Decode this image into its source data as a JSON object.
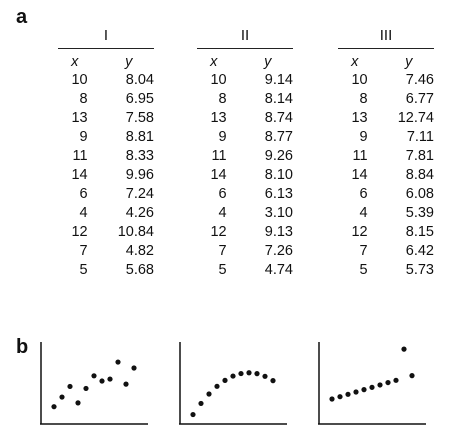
{
  "figure": {
    "panel_a_label": "a",
    "panel_b_label": "b",
    "x_header": "x",
    "y_header": "y"
  },
  "datasets": [
    {
      "title": "I",
      "rows": [
        {
          "x": "10",
          "y": "8.04"
        },
        {
          "x": "8",
          "y": "6.95"
        },
        {
          "x": "13",
          "y": "7.58"
        },
        {
          "x": "9",
          "y": "8.81"
        },
        {
          "x": "11",
          "y": "8.33"
        },
        {
          "x": "14",
          "y": "9.96"
        },
        {
          "x": "6",
          "y": "7.24"
        },
        {
          "x": "4",
          "y": "4.26"
        },
        {
          "x": "12",
          "y": "10.84"
        },
        {
          "x": "7",
          "y": "4.82"
        },
        {
          "x": "5",
          "y": "5.68"
        }
      ]
    },
    {
      "title": "II",
      "rows": [
        {
          "x": "10",
          "y": "9.14"
        },
        {
          "x": "8",
          "y": "8.14"
        },
        {
          "x": "13",
          "y": "8.74"
        },
        {
          "x": "9",
          "y": "8.77"
        },
        {
          "x": "11",
          "y": "9.26"
        },
        {
          "x": "14",
          "y": "8.10"
        },
        {
          "x": "6",
          "y": "6.13"
        },
        {
          "x": "4",
          "y": "3.10"
        },
        {
          "x": "12",
          "y": "9.13"
        },
        {
          "x": "7",
          "y": "7.26"
        },
        {
          "x": "5",
          "y": "4.74"
        }
      ]
    },
    {
      "title": "III",
      "rows": [
        {
          "x": "10",
          "y": "7.46"
        },
        {
          "x": "8",
          "y": "6.77"
        },
        {
          "x": "13",
          "y": "12.74"
        },
        {
          "x": "9",
          "y": "7.11"
        },
        {
          "x": "11",
          "y": "7.81"
        },
        {
          "x": "14",
          "y": "8.84"
        },
        {
          "x": "6",
          "y": "6.08"
        },
        {
          "x": "4",
          "y": "5.39"
        },
        {
          "x": "12",
          "y": "8.15"
        },
        {
          "x": "7",
          "y": "6.42"
        },
        {
          "x": "5",
          "y": "5.73"
        }
      ]
    }
  ],
  "chart_data": [
    {
      "type": "scatter",
      "x": [
        10,
        8,
        13,
        9,
        11,
        14,
        6,
        4,
        12,
        7,
        5
      ],
      "y": [
        8.04,
        6.95,
        7.58,
        8.81,
        8.33,
        9.96,
        7.24,
        4.26,
        10.84,
        4.82,
        5.68
      ],
      "xlim": [
        3,
        15
      ],
      "ylim": [
        2,
        13.5
      ],
      "grid": false
    },
    {
      "type": "scatter",
      "x": [
        10,
        8,
        13,
        9,
        11,
        14,
        6,
        4,
        12,
        7,
        5
      ],
      "y": [
        9.14,
        8.14,
        8.74,
        8.77,
        9.26,
        8.1,
        6.13,
        3.1,
        9.13,
        7.26,
        4.74
      ],
      "xlim": [
        3,
        15
      ],
      "ylim": [
        2,
        13.5
      ],
      "grid": false
    },
    {
      "type": "scatter",
      "x": [
        10,
        8,
        13,
        9,
        11,
        14,
        6,
        4,
        12,
        7,
        5
      ],
      "y": [
        7.46,
        6.77,
        12.74,
        7.11,
        7.81,
        8.84,
        6.08,
        5.39,
        8.15,
        6.42,
        5.73
      ],
      "xlim": [
        3,
        15
      ],
      "ylim": [
        2,
        13.5
      ],
      "grid": false
    }
  ]
}
